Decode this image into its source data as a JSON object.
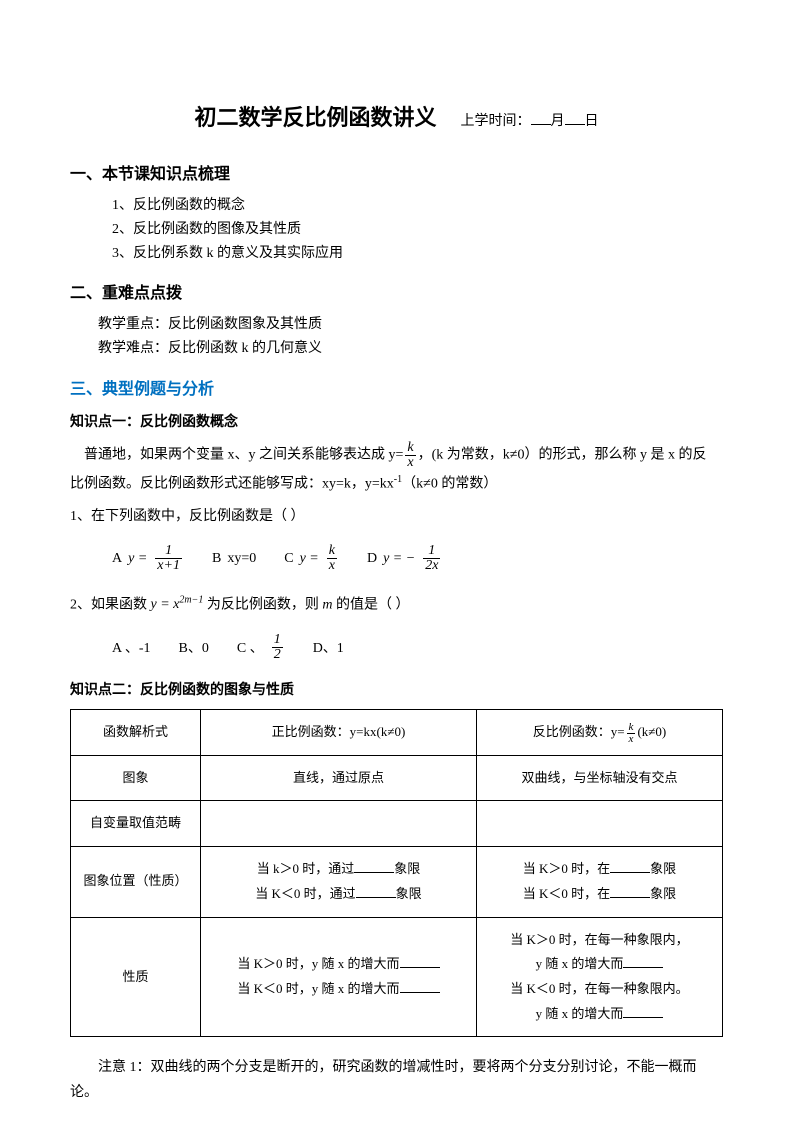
{
  "title": "初二数学反比例函数讲义",
  "date_label_prefix": "上学时间：",
  "date_month": "月",
  "date_day": "日",
  "section1": {
    "heading": "一、本节课知识点梳理",
    "items": [
      "1、反比例函数的概念",
      "2、反比例函数的图像及其性质",
      "3、反比例系数 k 的意义及其实际应用"
    ]
  },
  "section2": {
    "heading": "二、重难点点拨",
    "focus": "教学重点：反比例函数图象及其性质",
    "difficulty": "教学难点：反比例函数 k 的几何意义"
  },
  "section3": {
    "heading": "三、典型例题与分析",
    "kp1": {
      "title": "知识点一：反比例函数概念",
      "para_before": "普通地，如果两个变量 x、y 之间关系能够表达成 y=",
      "para_after": "，(k 为常数，k≠0）的形式，那么称 y 是 x 的反",
      "para2": "比例函数。反比例函数形式还能够写成：xy=k，y=kx",
      "para2_sup": "-1",
      "para2_tail": "（k≠0 的常数）",
      "q1": "1、在下列函数中，反比例函数是（    ）",
      "q1_options": {
        "A_label": "A",
        "B_label": "B",
        "B_body": "xy=0",
        "C_label": "C",
        "D_label": "D"
      },
      "q2_before": "2、如果函数 ",
      "q2_mid": " 为反比例函数，则 ",
      "q2_after": " 的值是（      ）",
      "q2_options": {
        "A": "A 、-1",
        "B": "B、0",
        "C_label": "C 、",
        "D": "D、1"
      }
    },
    "kp2": {
      "title": "知识点二：反比例函数的图象与性质",
      "table": {
        "rows": [
          [
            "函数解析式",
            "正比例函数：y=kx(k≠0)",
            "反比例函数：y=<frac>k|x</frac>(k≠0)"
          ],
          [
            "图象",
            "直线，通过原点",
            "双曲线，与坐标轴没有交点"
          ],
          [
            "自变量取值范畴",
            "",
            ""
          ],
          [
            "图象位置（性质）",
            "当 k>0 时，通过_____象限\n当 K<0 时，通过_____象限",
            "当 K>0 时，在____象限\n当 K<0 时，在____象限"
          ],
          [
            "性质",
            "当 K>0 时，y 随 x 的增大而_____\n当 K<0 时，y 随 x 的增大而_____",
            "当 K>0 时，在每一种象限内，\ny 随 x 的增大而_____\n当 K<0 时，在每一种象限内。\ny 随 x 的增大而_____"
          ]
        ]
      },
      "note": "注意 1：双曲线的两个分支是断开的，研究函数的增减性时，要将两个分支分别讨论，不能一概而论。"
    }
  },
  "colors": {
    "text": "#000000",
    "blue": "#0070c0",
    "background": "#ffffff",
    "border": "#000000"
  },
  "fonts": {
    "title_size": 22,
    "h1_size": 16,
    "body_size": 14,
    "table_size": 13
  }
}
